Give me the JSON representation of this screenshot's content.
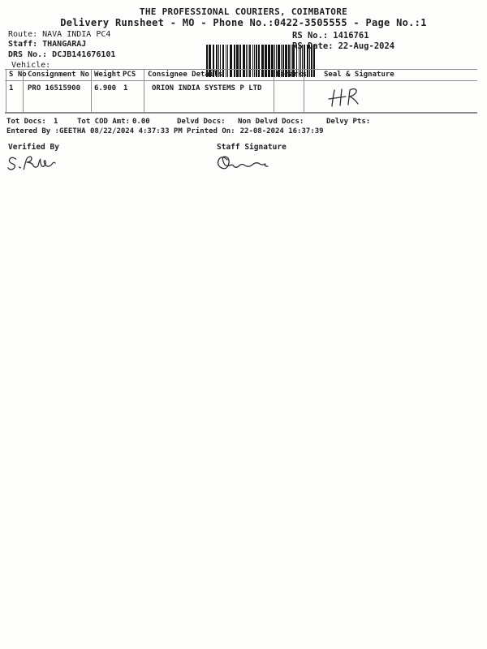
{
  "header": {
    "company": "THE PROFESSIONAL COURIERS, COIMBATORE",
    "subtitle": "Delivery Runsheet - MO - Phone No.:0422-3505555 - Page No.:1"
  },
  "info": {
    "route_label": "Route:",
    "route_value": "NAVA INDIA PC4",
    "staff_label": "Staff:",
    "staff_value": "THANGARAJ",
    "drs_label": "DRS No.:",
    "drs_value": "DCJB141676101",
    "vehicle_label": "Vehicle:",
    "vehicle_value": "",
    "rs_no_label": "RS No.:",
    "rs_no_value": "1416761",
    "rs_date_label": "RS Date:",
    "rs_date_value": "22-Aug-2024",
    "barcode_icon": "code128-barcode"
  },
  "table": {
    "headers": {
      "s_no": "S No",
      "consignment_no": "Consignment No",
      "weight": "Weight",
      "pcs": "PCS",
      "consignee": "Consignee Details",
      "remarks": "Remarks",
      "seal": "Seal & Signature"
    },
    "rows": [
      {
        "s_no": "1",
        "consignment_no": "PRO 16515900",
        "weight": "6.900",
        "pcs": "1",
        "consignee": "ORION INDIA SYSTEMS P LTD",
        "remarks": "",
        "seal_handwriting": "HR"
      }
    ]
  },
  "totals": {
    "tot_docs_label": "Tot Docs:",
    "tot_docs_value": "1",
    "tot_cod_amt_label": "Tot COD Amt:",
    "tot_cod_amt_value": "0.00",
    "delvd_docs_label": "Delvd Docs:",
    "delvd_docs_value": "",
    "non_delvd_docs_label": "Non Delvd Docs:",
    "non_delvd_docs_value": "",
    "delvy_pts_label": "Delvy Pts:",
    "delvy_pts_value": ""
  },
  "audit": {
    "entered_by_label": "Entered By :",
    "entered_by_value": "GEETHA 08/22/2024 4:37:33 PM",
    "printed_on_label": "Printed On:",
    "printed_on_value": "22-08-2024 16:37:39"
  },
  "signoff": {
    "verified_by_label": "Verified By",
    "staff_signature_label": "Staff Signature",
    "verified_by_handwriting": "S. Raja",
    "staff_signature_icon": "illegible-scribble"
  },
  "colors": {
    "text": "#1f1f1f",
    "line": "#8e8e8e",
    "background": "#fdfdfc",
    "barcode": "#141414",
    "handwriting": "#2e2e2e"
  }
}
